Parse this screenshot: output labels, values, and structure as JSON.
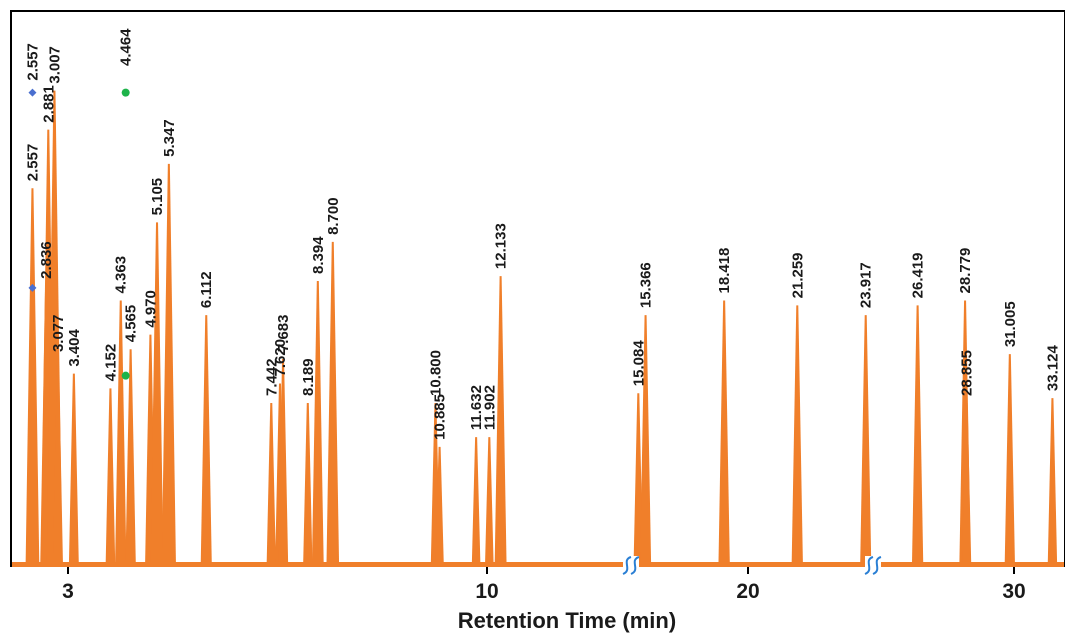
{
  "chart_data": {
    "type": "area",
    "xlabel": "Retention Time (min)",
    "x_ticks": [
      "3",
      "10",
      "20",
      "30"
    ],
    "peak_color": "#f07f2a",
    "break_color": "#2a7fd4",
    "marker_colors": {
      "diamond": "#4a6fcf",
      "circle": "#1db34a"
    },
    "x_segments": [
      {
        "x_range": [
          2.2,
          14.8
        ]
      },
      {
        "x_range": [
          14.8,
          24.2
        ]
      },
      {
        "x_range": [
          24.2,
          33.6
        ]
      }
    ],
    "peaks": [
      {
        "label": "2.557",
        "rt": 2.557,
        "height": 0.77
      },
      {
        "label": "2.836",
        "rt": 2.836,
        "height": 0.57
      },
      {
        "label": "2.881",
        "rt": 2.881,
        "height": 0.89
      },
      {
        "label": "3.007",
        "rt": 3.007,
        "height": 0.97
      },
      {
        "label": "3.077",
        "rt": 3.077,
        "height": 0.42
      },
      {
        "label": "3.404",
        "rt": 3.404,
        "height": 0.39
      },
      {
        "label": "4.152",
        "rt": 4.152,
        "height": 0.36
      },
      {
        "label": "4.363",
        "rt": 4.363,
        "height": 0.54
      },
      {
        "label": "4.565",
        "rt": 4.565,
        "height": 0.44
      },
      {
        "label": "4.970",
        "rt": 4.97,
        "height": 0.47
      },
      {
        "label": "5.105",
        "rt": 5.105,
        "height": 0.7
      },
      {
        "label": "5.347",
        "rt": 5.347,
        "height": 0.82
      },
      {
        "label": "6.112",
        "rt": 6.112,
        "height": 0.51
      },
      {
        "label": "7.442",
        "rt": 7.442,
        "height": 0.33
      },
      {
        "label": "7.620",
        "rt": 7.62,
        "height": 0.37
      },
      {
        "label": "7.683",
        "rt": 7.683,
        "height": 0.42
      },
      {
        "label": "8.189",
        "rt": 8.189,
        "height": 0.33
      },
      {
        "label": "8.394",
        "rt": 8.394,
        "height": 0.58
      },
      {
        "label": "8.700",
        "rt": 8.7,
        "height": 0.66
      },
      {
        "label": "10.800",
        "rt": 10.8,
        "height": 0.33
      },
      {
        "label": "10.885",
        "rt": 10.885,
        "height": 0.24
      },
      {
        "label": "11.632",
        "rt": 11.632,
        "height": 0.26
      },
      {
        "label": "11.902",
        "rt": 11.902,
        "height": 0.26
      },
      {
        "label": "12.133",
        "rt": 12.133,
        "height": 0.59
      },
      {
        "label": "15.084",
        "rt": 15.084,
        "height": 0.35
      },
      {
        "label": "15.366",
        "rt": 15.366,
        "height": 0.51
      },
      {
        "label": "18.418",
        "rt": 18.418,
        "height": 0.54
      },
      {
        "label": "21.259",
        "rt": 21.259,
        "height": 0.53
      },
      {
        "label": "23.917",
        "rt": 23.917,
        "height": 0.51
      },
      {
        "label": "26.419",
        "rt": 26.419,
        "height": 0.53
      },
      {
        "label": "28.779",
        "rt": 28.779,
        "height": 0.54
      },
      {
        "label": "28.855",
        "rt": 28.855,
        "height": 0.33
      },
      {
        "label": "31.005",
        "rt": 31.005,
        "height": 0.43
      },
      {
        "label": "33.124",
        "rt": 33.124,
        "height": 0.34
      }
    ],
    "extra_labels": [
      {
        "label": "2.557",
        "rt": 2.557,
        "height": 0.97
      },
      {
        "label": "4.464",
        "rt": 4.464,
        "height": 1.0
      }
    ],
    "markers": [
      {
        "shape": "diamond",
        "rt": 2.557,
        "height": 0.97
      },
      {
        "shape": "diamond",
        "rt": 2.557,
        "height": 0.57
      },
      {
        "shape": "circle",
        "rt": 4.464,
        "height": 0.97
      },
      {
        "shape": "circle",
        "rt": 4.464,
        "height": 0.39
      }
    ]
  }
}
